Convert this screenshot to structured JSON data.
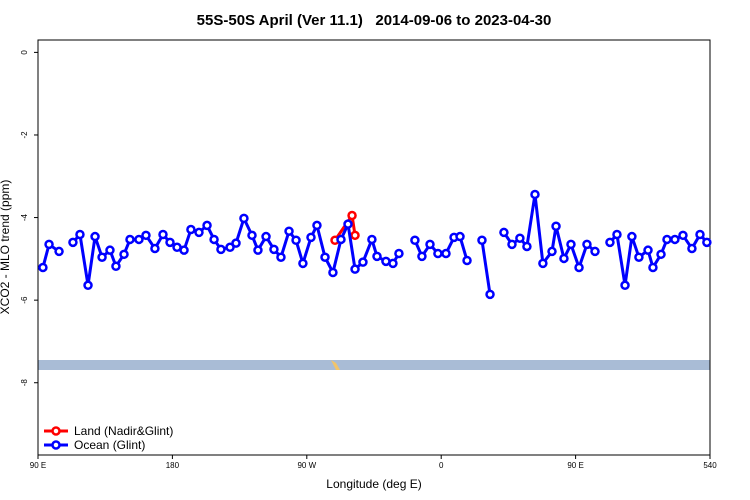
{
  "chart_data": {
    "type": "line",
    "title": "55S-50S April (Ver 11.1)   2014-09-06 to 2023-04-30",
    "xlabel": "Longitude (deg E)",
    "ylabel": "XCO2 - MLO trend (ppm)",
    "xlim": [
      90,
      540
    ],
    "ylim": [
      -9.75,
      0.3
    ],
    "xticks": [
      {
        "value": 90,
        "label": "90 E"
      },
      180,
      {
        "value": 270,
        "label": "90 W"
      },
      {
        "value": 360,
        "label": "0"
      },
      {
        "value": 450,
        "label": "90 E"
      },
      540
    ],
    "yticks": [
      0,
      -2,
      -4,
      -6,
      -8
    ],
    "legend": "bottom-left",
    "series": [
      {
        "name": "Land (Nadir&Glint)",
        "color": "#ff0000",
        "x": [
          288.9,
          300.3,
          302.3
        ],
        "values": [
          -4.55,
          -3.95,
          -4.43
        ]
      },
      {
        "name": "Ocean (Glint)",
        "color": "#0000ff",
        "x": [
          93.3,
          97.4,
          104.1,
          null,
          113.4,
          118.1,
          123.5,
          128.2,
          132.9,
          138.2,
          142.2,
          147.6,
          151.6,
          157.6,
          162.3,
          168.3,
          173.7,
          178.4,
          183.1,
          187.8,
          192.4,
          197.8,
          203.2,
          207.9,
          212.5,
          218.6,
          222.6,
          227.9,
          233.3,
          237.3,
          242.7,
          248.0,
          252.7,
          258.1,
          262.8,
          267.4,
          272.8,
          276.8,
          282.2,
          287.5,
          292.9,
          297.6,
          302.3,
          307.6,
          313.6,
          317.0,
          323.0,
          327.7,
          331.7,
          null,
          342.4,
          347.1,
          352.5,
          357.8,
          363.2,
          368.6,
          372.6,
          377.3,
          null,
          387.3,
          392.7,
          null,
          402.0,
          407.4,
          412.7,
          417.4,
          422.8,
          428.1,
          434.2,
          436.9,
          442.2,
          446.9,
          452.3,
          457.6,
          463.0,
          null,
          473.0,
          477.7,
          483.1,
          487.7,
          492.4,
          498.5,
          501.8,
          507.2,
          511.2,
          516.5,
          521.9,
          527.9,
          533.3,
          537.9
        ],
        "values": [
          -5.21,
          -4.65,
          -4.82,
          null,
          -4.6,
          -4.41,
          -5.64,
          -4.46,
          -4.96,
          -4.79,
          -5.18,
          -4.89,
          -4.53,
          -4.53,
          -4.43,
          -4.75,
          -4.41,
          -4.6,
          -4.72,
          -4.79,
          -4.29,
          -4.36,
          -4.19,
          -4.53,
          -4.77,
          -4.72,
          -4.62,
          -4.02,
          -4.43,
          -4.79,
          -4.46,
          -4.77,
          -4.96,
          -4.33,
          -4.55,
          -5.11,
          -4.48,
          -4.19,
          -4.96,
          -5.33,
          -4.53,
          -4.16,
          -5.25,
          -5.08,
          -4.53,
          -4.94,
          -5.06,
          -5.11,
          -4.87,
          null,
          -4.55,
          -4.94,
          -4.65,
          -4.87,
          -4.87,
          -4.48,
          -4.46,
          -5.04,
          null,
          -4.55,
          -5.86,
          null,
          -4.36,
          -4.65,
          -4.5,
          -4.7,
          -3.44,
          -5.11,
          -4.82,
          -4.21,
          -4.99,
          -4.65,
          -5.21,
          -4.65,
          -4.82,
          null,
          -4.6,
          -4.41,
          -5.64,
          -4.46,
          -4.96,
          -4.79,
          -5.21,
          -4.89,
          -4.53,
          -4.53,
          -4.43,
          -4.75,
          -4.41,
          -4.6
        ]
      }
    ]
  }
}
